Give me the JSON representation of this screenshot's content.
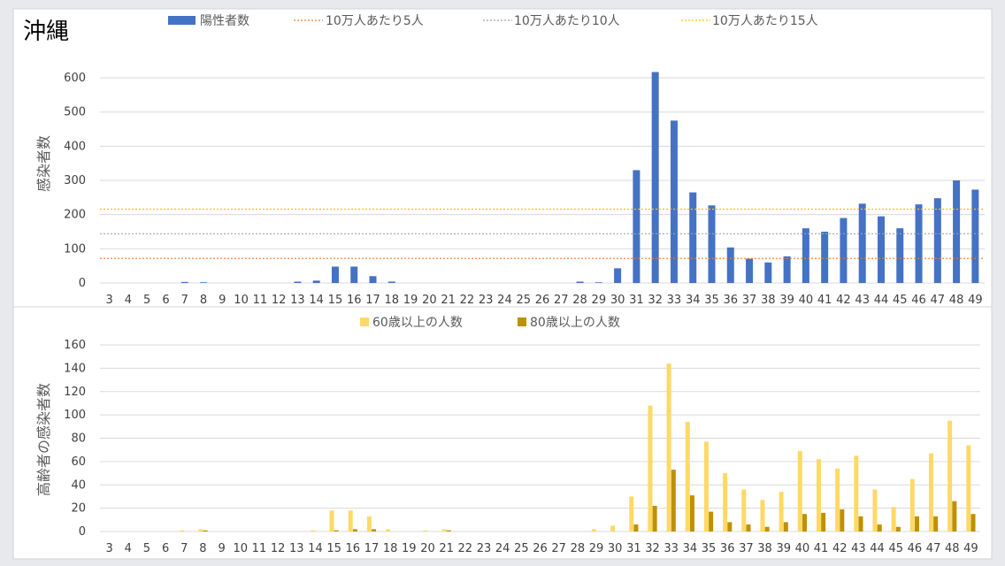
{
  "colors": {
    "positive": "#4472c4",
    "ref5": "#ed7d31",
    "ref10": "#a5a5a5",
    "ref15": "#ffc000",
    "age60": "#ffd966",
    "age80": "#bf9000"
  },
  "chart_data": [
    {
      "type": "bar",
      "title": "沖縄",
      "xlabel": "",
      "ylabel": "感染者数",
      "ylim": [
        0,
        650
      ],
      "yticks": [
        0,
        100,
        200,
        300,
        400,
        500,
        600
      ],
      "grid": true,
      "legend_position": "top",
      "categories": [
        "3",
        "4",
        "5",
        "6",
        "7",
        "8",
        "9",
        "10",
        "11",
        "12",
        "13",
        "14",
        "15",
        "16",
        "17",
        "18",
        "19",
        "20",
        "21",
        "22",
        "23",
        "24",
        "25",
        "26",
        "27",
        "28",
        "29",
        "30",
        "31",
        "32",
        "33",
        "34",
        "35",
        "36",
        "37",
        "38",
        "39",
        "40",
        "41",
        "42",
        "43",
        "44",
        "45",
        "46",
        "47",
        "48",
        "49"
      ],
      "series": [
        {
          "name": "陽性者数",
          "color": "#4472c4",
          "values": [
            0,
            0,
            0,
            0,
            3,
            2,
            0,
            0,
            0,
            0,
            4,
            7,
            48,
            48,
            20,
            4,
            0,
            0,
            0,
            0,
            0,
            0,
            0,
            0,
            0,
            4,
            2,
            43,
            330,
            617,
            475,
            265,
            227,
            104,
            71,
            60,
            78,
            160,
            150,
            190,
            232,
            195,
            160,
            230,
            248,
            300,
            273
          ]
        }
      ],
      "reference_lines": [
        {
          "name": "10万人あたり5人",
          "value": 72,
          "color": "#ed7d31"
        },
        {
          "name": "10万人あたり10人",
          "value": 144,
          "color": "#a5a5a5"
        },
        {
          "name": "10万人あたり15人",
          "value": 216,
          "color": "#ffc000"
        }
      ]
    },
    {
      "type": "bar",
      "title": "",
      "xlabel": "",
      "ylabel": "高齢者の感染者数",
      "ylim": [
        0,
        160
      ],
      "yticks": [
        0,
        20,
        40,
        60,
        80,
        100,
        120,
        140,
        160
      ],
      "grid": true,
      "legend_position": "top",
      "categories": [
        "3",
        "4",
        "5",
        "6",
        "7",
        "8",
        "9",
        "10",
        "11",
        "12",
        "13",
        "14",
        "15",
        "16",
        "17",
        "18",
        "19",
        "20",
        "21",
        "22",
        "23",
        "24",
        "25",
        "26",
        "27",
        "28",
        "29",
        "30",
        "31",
        "32",
        "33",
        "34",
        "35",
        "36",
        "37",
        "38",
        "39",
        "40",
        "41",
        "42",
        "43",
        "44",
        "45",
        "46",
        "47",
        "48",
        "49"
      ],
      "series": [
        {
          "name": "60歳以上の人数",
          "color": "#ffd966",
          "values": [
            0,
            0,
            0,
            0,
            1,
            2,
            0,
            0,
            0,
            0,
            0,
            1,
            18,
            18,
            13,
            2,
            0,
            1,
            2,
            0,
            0,
            0,
            0,
            0,
            0,
            0,
            2,
            5,
            30,
            108,
            144,
            94,
            77,
            50,
            36,
            27,
            34,
            69,
            62,
            54,
            65,
            36,
            21,
            45,
            67,
            95,
            74
          ]
        },
        {
          "name": "80歳以上の人数",
          "color": "#bf9000",
          "values": [
            0,
            0,
            0,
            0,
            0,
            1,
            0,
            0,
            0,
            0,
            0,
            0,
            1,
            2,
            2,
            0,
            0,
            0,
            1,
            0,
            0,
            0,
            0,
            0,
            0,
            0,
            0,
            0,
            6,
            22,
            53,
            31,
            17,
            8,
            6,
            4,
            8,
            15,
            16,
            19,
            13,
            6,
            4,
            13,
            13,
            26,
            15
          ]
        }
      ]
    }
  ]
}
